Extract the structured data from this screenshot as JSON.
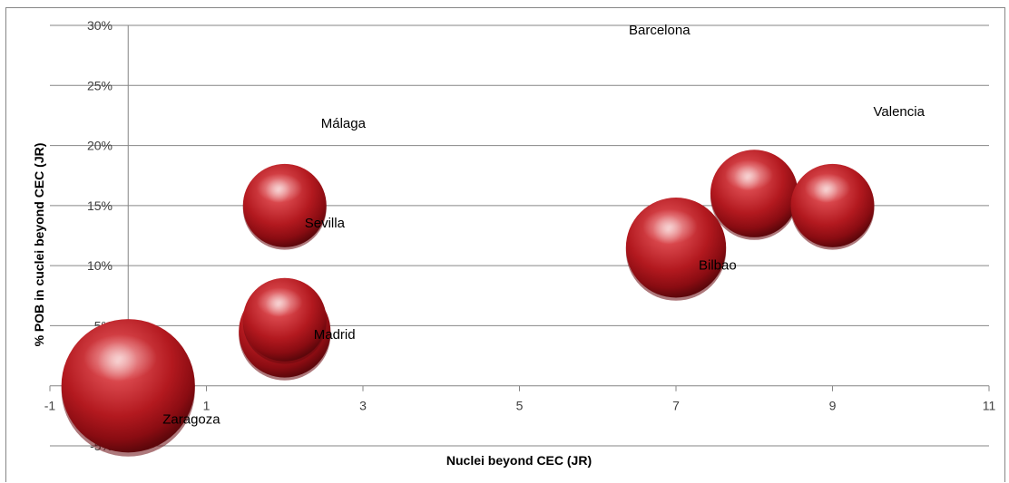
{
  "chart_data": {
    "type": "scatter",
    "variant": "bubble-3d",
    "title": "",
    "xlabel": "Nuclei beyond CEC (JR)",
    "ylabel": "% POB  in cuclei beyond CEC (JR)",
    "xlim": [
      -1,
      11
    ],
    "ylim": [
      -0.05,
      0.3
    ],
    "xticks": [
      -1,
      1,
      3,
      5,
      7,
      9,
      11
    ],
    "yticks": [
      -0.05,
      0,
      0.05,
      0.1,
      0.15,
      0.2,
      0.25,
      0.3
    ],
    "ytick_labels": [
      "-5%",
      "0%",
      "5%",
      "10%",
      "15%",
      "20%",
      "25%",
      "30%"
    ],
    "xgrid": false,
    "ygrid": true,
    "legend": "none",
    "bubble_color": "#c0272d",
    "points": [
      {
        "label": "Zaragoza",
        "x": 0,
        "y": 0.0,
        "size": 1.6
      },
      {
        "label": "Madrid",
        "x": 2,
        "y": 0.045,
        "size": 1.1
      },
      {
        "label": "",
        "x": 2,
        "y": 0.055,
        "size": 1.0
      },
      {
        "label": "Sevilla",
        "x": 2,
        "y": 0.15,
        "size": 1.0
      },
      {
        "label": "Málaga",
        "x": 2,
        "y": 0.15,
        "size": 0.0
      },
      {
        "label": "Bilbao",
        "x": 7,
        "y": 0.115,
        "size": 1.2
      },
      {
        "label": "",
        "x": 8,
        "y": 0.16,
        "size": 1.05
      },
      {
        "label": "Valencia",
        "x": 9,
        "y": 0.15,
        "size": 1.0
      },
      {
        "label": "Barcelona",
        "x": 7,
        "y": 0.27,
        "size": 0.0
      }
    ]
  }
}
